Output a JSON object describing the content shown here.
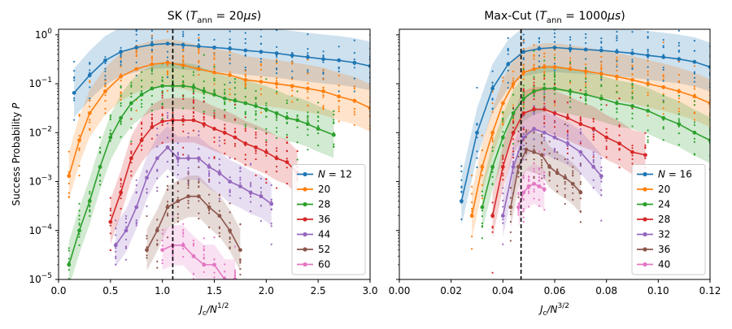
{
  "chart_data": [
    {
      "type": "line",
      "title": "SK (T_ann = 20μs)",
      "title_parts": {
        "prefix": "SK (",
        "var": "T",
        "sub": "ann",
        "mid": " = 20",
        "unit": "μs",
        "suffix": ")"
      },
      "xlabel": "Jc/N^1/2",
      "xlabel_parts": {
        "var": "J",
        "sub": "c",
        "mid": "/N",
        "sup": "1/2"
      },
      "ylabel": "Success Probability P",
      "ylabel_parts": {
        "text": "Success Probability ",
        "var": "P"
      },
      "xlim": [
        0.0,
        3.0
      ],
      "ylim": [
        1e-05,
        1.3
      ],
      "yscale": "log",
      "xticks": [
        0.0,
        0.5,
        1.0,
        1.5,
        2.0,
        2.5,
        3.0
      ],
      "xtick_labels": [
        "0.0",
        "0.5",
        "1.0",
        "1.5",
        "2.0",
        "2.5",
        "3.0"
      ],
      "yticks": [
        1e-05,
        0.0001,
        0.001,
        0.01,
        0.1,
        1
      ],
      "ytick_labels": [
        {
          "base": "10",
          "exp": "−5"
        },
        {
          "base": "10",
          "exp": "−4"
        },
        {
          "base": "10",
          "exp": "−3"
        },
        {
          "base": "10",
          "exp": "−2"
        },
        {
          "base": "10",
          "exp": "−1"
        },
        {
          "base": "10",
          "exp": "0"
        }
      ],
      "vline_x": 1.1,
      "legend_position": "lower-right",
      "legend_first_prefix": "N = ",
      "series": [
        {
          "name": "12",
          "color": "#1f77b4",
          "x": [
            0.15,
            0.3,
            0.45,
            0.6,
            0.75,
            0.9,
            1.05,
            1.2,
            1.35,
            1.5,
            1.65,
            1.8,
            1.95,
            2.1,
            2.25,
            2.4,
            2.55,
            2.7,
            2.85,
            3.0
          ],
          "y": [
            0.065,
            0.15,
            0.3,
            0.45,
            0.55,
            0.63,
            0.66,
            0.62,
            0.58,
            0.55,
            0.52,
            0.48,
            0.45,
            0.42,
            0.38,
            0.35,
            0.32,
            0.3,
            0.27,
            0.23
          ]
        },
        {
          "name": "20",
          "color": "#ff7f0e",
          "x": [
            0.1,
            0.2,
            0.3,
            0.45,
            0.6,
            0.75,
            0.9,
            1.05,
            1.2,
            1.35,
            1.5,
            1.65,
            1.8,
            1.95,
            2.1,
            2.25,
            2.4,
            2.55,
            2.7,
            2.85,
            3.0
          ],
          "y": [
            0.0013,
            0.007,
            0.025,
            0.07,
            0.14,
            0.2,
            0.25,
            0.27,
            0.24,
            0.2,
            0.17,
            0.15,
            0.12,
            0.11,
            0.1,
            0.09,
            0.08,
            0.07,
            0.055,
            0.045,
            0.032
          ]
        },
        {
          "name": "28",
          "color": "#2ca02c",
          "x": [
            0.1,
            0.2,
            0.3,
            0.4,
            0.5,
            0.6,
            0.7,
            0.8,
            0.9,
            1.0,
            1.1,
            1.2,
            1.3,
            1.4,
            1.5,
            1.6,
            1.7,
            1.8,
            1.9,
            2.0,
            2.1,
            2.2,
            2.3,
            2.4,
            2.5,
            2.65
          ],
          "y": [
            2e-05,
            0.0001,
            0.0004,
            0.002,
            0.008,
            0.02,
            0.04,
            0.06,
            0.08,
            0.09,
            0.09,
            0.09,
            0.085,
            0.07,
            0.06,
            0.05,
            0.045,
            0.04,
            0.035,
            0.03,
            0.025,
            0.02,
            0.018,
            0.015,
            0.012,
            0.009
          ]
        },
        {
          "name": "36",
          "color": "#d62728",
          "x": [
            0.5,
            0.6,
            0.7,
            0.8,
            0.9,
            1.0,
            1.1,
            1.2,
            1.3,
            1.4,
            1.5,
            1.6,
            1.7,
            1.8,
            1.9,
            2.0,
            2.1,
            2.2,
            2.3
          ],
          "y": [
            0.00015,
            0.0006,
            0.003,
            0.007,
            0.013,
            0.017,
            0.018,
            0.018,
            0.018,
            0.015,
            0.012,
            0.01,
            0.008,
            0.006,
            0.005,
            0.004,
            0.003,
            0.0025,
            0.0015
          ]
        },
        {
          "name": "44",
          "color": "#9467bd",
          "x": [
            0.55,
            0.65,
            0.75,
            0.85,
            0.95,
            1.05,
            1.15,
            1.25,
            1.35,
            1.45,
            1.55,
            1.65,
            1.75,
            1.85,
            1.95,
            2.05
          ],
          "y": [
            5e-05,
            0.0001,
            0.0003,
            0.0012,
            0.003,
            0.005,
            0.003,
            0.003,
            0.003,
            0.002,
            0.0015,
            0.001,
            0.0008,
            0.0006,
            0.0005,
            0.00035
          ]
        },
        {
          "name": "52",
          "color": "#8c564b",
          "x": [
            0.85,
            0.95,
            1.05,
            1.15,
            1.25,
            1.35,
            1.45,
            1.55,
            1.65,
            1.75
          ],
          "y": [
            4e-05,
            0.0001,
            0.0003,
            0.0004,
            0.0005,
            0.0005,
            0.0003,
            0.0002,
            0.0001,
            4e-05
          ]
        },
        {
          "name": "60",
          "color": "#e377c2",
          "x": [
            1.0,
            1.1,
            1.2,
            1.3,
            1.4,
            1.5,
            1.6,
            1.7
          ],
          "y": [
            4e-05,
            5e-05,
            5e-05,
            3e-05,
            2e-05,
            2e-05,
            1e-05,
            1e-05
          ]
        }
      ]
    },
    {
      "type": "line",
      "title": "Max-Cut (T_ann = 1000μs)",
      "title_parts": {
        "prefix": "Max-Cut (",
        "var": "T",
        "sub": "ann",
        "mid": " = 1000",
        "unit": "μs",
        "suffix": ")"
      },
      "xlabel": "Jc/N^3/2",
      "xlabel_parts": {
        "var": "J",
        "sub": "c",
        "mid": "/N",
        "sup": "3/2"
      },
      "xlim": [
        0.0,
        0.12
      ],
      "ylim": [
        1e-05,
        1.3
      ],
      "yscale": "log",
      "xticks": [
        0.0,
        0.02,
        0.04,
        0.06,
        0.08,
        0.1,
        0.12
      ],
      "xtick_labels": [
        "0.00",
        "0.02",
        "0.04",
        "0.06",
        "0.08",
        "0.10",
        "0.12"
      ],
      "vline_x": 0.047,
      "legend_position": "lower-right",
      "legend_first_prefix": "N = ",
      "series": [
        {
          "name": "16",
          "color": "#1f77b4",
          "x": [
            0.024,
            0.03,
            0.036,
            0.042,
            0.048,
            0.054,
            0.06,
            0.066,
            0.072,
            0.078,
            0.084,
            0.09,
            0.096,
            0.102,
            0.108,
            0.114,
            0.12
          ],
          "y": [
            0.0004,
            0.01,
            0.08,
            0.25,
            0.45,
            0.52,
            0.55,
            0.52,
            0.5,
            0.48,
            0.45,
            0.42,
            0.38,
            0.35,
            0.32,
            0.28,
            0.22
          ]
        },
        {
          "name": "20",
          "color": "#ff7f0e",
          "x": [
            0.028,
            0.032,
            0.036,
            0.04,
            0.044,
            0.048,
            0.052,
            0.056,
            0.06,
            0.066,
            0.072,
            0.078,
            0.084,
            0.09,
            0.096,
            0.102,
            0.108,
            0.114,
            0.12
          ],
          "y": [
            0.0002,
            0.002,
            0.01,
            0.04,
            0.1,
            0.17,
            0.2,
            0.22,
            0.22,
            0.2,
            0.18,
            0.16,
            0.14,
            0.12,
            0.1,
            0.085,
            0.07,
            0.055,
            0.04
          ]
        },
        {
          "name": "24",
          "color": "#2ca02c",
          "x": [
            0.032,
            0.036,
            0.04,
            0.044,
            0.048,
            0.052,
            0.056,
            0.06,
            0.066,
            0.072,
            0.078,
            0.084,
            0.09,
            0.096,
            0.102,
            0.108,
            0.114,
            0.12
          ],
          "y": [
            0.0003,
            0.002,
            0.008,
            0.025,
            0.05,
            0.07,
            0.08,
            0.08,
            0.07,
            0.06,
            0.05,
            0.04,
            0.035,
            0.028,
            0.02,
            0.015,
            0.01,
            0.007
          ]
        },
        {
          "name": "28",
          "color": "#d62728",
          "x": [
            0.036,
            0.04,
            0.044,
            0.048,
            0.052,
            0.056,
            0.06,
            0.065,
            0.07,
            0.075,
            0.08,
            0.085,
            0.09,
            0.095
          ],
          "y": [
            0.0002,
            0.002,
            0.01,
            0.025,
            0.03,
            0.03,
            0.025,
            0.02,
            0.015,
            0.012,
            0.008,
            0.006,
            0.004,
            0.0035
          ]
        },
        {
          "name": "32",
          "color": "#9467bd",
          "x": [
            0.04,
            0.044,
            0.048,
            0.052,
            0.056,
            0.06,
            0.065,
            0.07,
            0.075,
            0.078
          ],
          "y": [
            0.0002,
            0.002,
            0.008,
            0.012,
            0.01,
            0.008,
            0.006,
            0.004,
            0.002,
            0.0013
          ]
        },
        {
          "name": "36",
          "color": "#8c564b",
          "x": [
            0.043,
            0.046,
            0.049,
            0.052,
            0.055,
            0.058,
            0.061,
            0.064,
            0.067,
            0.07
          ],
          "y": [
            0.0003,
            0.002,
            0.0045,
            0.004,
            0.0035,
            0.002,
            0.0015,
            0.0012,
            0.0009,
            0.0006
          ]
        },
        {
          "name": "40",
          "color": "#e377c2",
          "x": [
            0.046,
            0.048,
            0.05,
            0.052,
            0.054,
            0.056
          ],
          "y": [
            0.0003,
            0.0006,
            0.0008,
            0.0009,
            0.0008,
            0.0007
          ]
        }
      ]
    }
  ]
}
